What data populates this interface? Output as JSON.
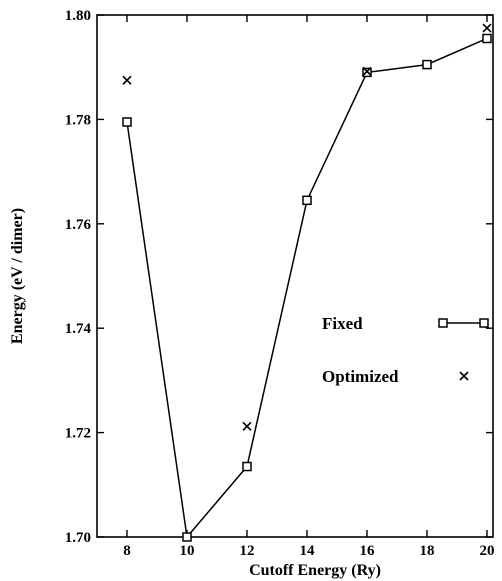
{
  "chart_data": {
    "type": "line",
    "xlabel": "Cutoff Energy (Ry)",
    "ylabel": "Energy (eV / dimer)",
    "xlim": [
      7,
      20.2
    ],
    "ylim": [
      1.7,
      1.8
    ],
    "x_ticks": [
      8,
      10,
      12,
      14,
      16,
      18,
      20
    ],
    "x_tick_labels": [
      "8",
      "10",
      "12",
      "14",
      "16",
      "18",
      "20"
    ],
    "y_ticks": [
      1.7,
      1.72,
      1.74,
      1.76,
      1.78,
      1.8
    ],
    "y_tick_labels": [
      "1.70",
      "1.72",
      "1.74",
      "1.76",
      "1.78",
      "1.80"
    ],
    "grid": false,
    "legend_position": "right-middle",
    "series": [
      {
        "name": "Fixed",
        "marker": "square",
        "line": true,
        "x": [
          8,
          10,
          12,
          14,
          16,
          18,
          20
        ],
        "y": [
          1.7795,
          1.7,
          1.7135,
          1.7645,
          1.789,
          1.7905,
          1.7955
        ]
      },
      {
        "name": "Optimized",
        "marker": "x",
        "line": false,
        "x": [
          8,
          12,
          16,
          20
        ],
        "y": [
          1.7875,
          1.7212,
          1.7892,
          1.7975
        ]
      }
    ],
    "colors": {
      "line": "#000000",
      "background": "#ffffff"
    }
  }
}
